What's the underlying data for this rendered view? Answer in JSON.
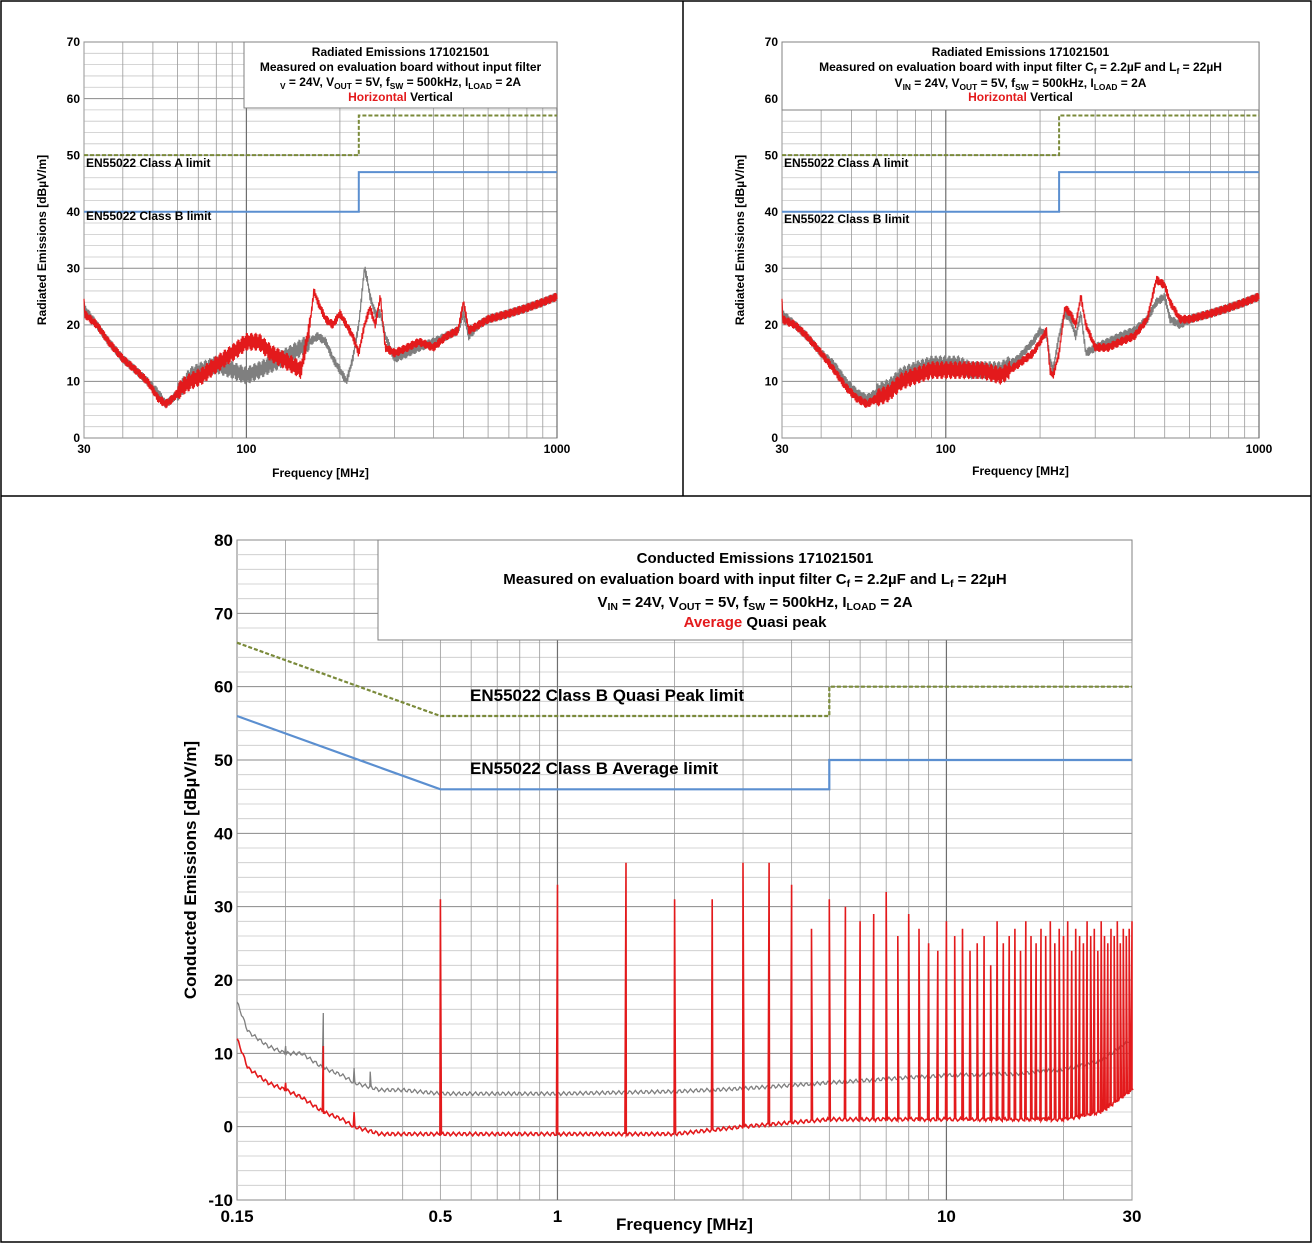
{
  "chart_data": [
    {
      "id": "radiated-no-filter",
      "type": "line",
      "title": "Radiated Emissions 171021501",
      "subtitle": "Measured on evaluation board without input filter",
      "conditions": [
        {
          "t": "V",
          "s": "IN"
        },
        {
          "t": " = 24V, V"
        },
        {
          "t": "OUT",
          "s": 1
        },
        {
          "t": " = 5V, f"
        },
        {
          "t": "SW",
          "s": 1
        },
        {
          "t": " = 500kHz, I"
        },
        {
          "t": "LOAD",
          "s": 1
        },
        {
          "t": " = 2A"
        }
      ],
      "conditions_text": "VIN = 24V, VOUT = 5V, fSW = 500kHz, ILOAD = 2A",
      "legend": [
        {
          "name": "Horizontal",
          "color": "#e31a1c"
        },
        {
          "name": "Vertical",
          "color": "#000000"
        }
      ],
      "xlabel": "Frequency [MHz]",
      "ylabel": "Radiated Emissions [dBµV/m]",
      "x_scale": "log",
      "xlim": [
        30,
        1000
      ],
      "ylim": [
        0,
        70
      ],
      "x_ticks": [
        30,
        100,
        1000
      ],
      "y_ticks": [
        0,
        10,
        20,
        30,
        40,
        50,
        60,
        70
      ],
      "limits": [
        {
          "name": "EN55022 Class A limit",
          "style": "dashed",
          "color": "#7a8a3a",
          "x": [
            30,
            230,
            230,
            1000
          ],
          "y": [
            50,
            50,
            57,
            57
          ]
        },
        {
          "name": "EN55022 Class B limit",
          "style": "solid",
          "color": "#5b8fd0",
          "x": [
            30,
            230,
            230,
            1000
          ],
          "y": [
            40,
            40,
            47,
            47
          ]
        }
      ],
      "series": [
        {
          "name": "Horizontal",
          "color": "#e31a1c",
          "x": [
            30,
            33,
            36,
            40,
            44,
            48,
            52,
            55,
            58,
            62,
            66,
            72,
            80,
            90,
            100,
            110,
            120,
            130,
            140,
            150,
            160,
            165,
            170,
            180,
            190,
            200,
            210,
            220,
            230,
            240,
            250,
            260,
            270,
            280,
            300,
            330,
            360,
            400,
            440,
            480,
            500,
            520,
            560,
            600,
            700,
            800,
            900,
            1000
          ],
          "y": [
            22,
            20,
            17,
            14,
            12,
            10,
            7,
            6,
            7,
            9,
            10,
            11,
            13,
            15,
            17,
            17,
            15,
            14,
            13,
            12,
            20,
            26,
            24,
            21,
            20,
            22,
            20,
            18,
            15,
            20,
            23,
            20,
            25,
            16,
            15,
            16,
            17,
            16,
            18,
            19,
            24,
            19,
            20,
            21,
            22,
            23,
            24,
            25
          ]
        },
        {
          "name": "Vertical",
          "color": "#7f7f7f",
          "x": [
            30,
            33,
            36,
            40,
            44,
            48,
            52,
            55,
            58,
            62,
            66,
            72,
            80,
            90,
            100,
            110,
            120,
            130,
            140,
            150,
            160,
            170,
            180,
            190,
            200,
            210,
            215,
            220,
            230,
            240,
            245,
            250,
            260,
            270,
            280,
            300,
            330,
            360,
            400,
            440,
            480,
            500,
            520,
            560,
            600,
            700,
            800,
            900,
            1000
          ],
          "y": [
            23,
            20,
            17,
            14,
            12,
            10,
            8,
            6,
            7,
            9,
            11,
            12,
            13,
            12,
            11,
            12,
            13,
            14,
            15,
            16,
            17,
            18,
            17,
            14,
            12,
            10,
            12,
            14,
            20,
            30,
            28,
            25,
            22,
            22,
            18,
            14,
            15,
            16,
            17,
            18,
            19,
            22,
            18,
            20,
            21,
            22,
            23,
            24,
            25
          ]
        }
      ]
    },
    {
      "id": "radiated-with-filter",
      "type": "line",
      "title": "Radiated Emissions 171021501",
      "subtitle_parts": [
        {
          "t": "Measured on evaluation board with input filter C"
        },
        {
          "t": "f",
          "s": 1
        },
        {
          "t": " = 2.2µF and L"
        },
        {
          "t": "f",
          "s": 1
        },
        {
          "t": " = 22µH"
        }
      ],
      "subtitle": "Measured on evaluation board with input filter Cf = 2.2µF and Lf = 22µH",
      "conditions": [
        {
          "t": "V"
        },
        {
          "t": "IN",
          "s": 1
        },
        {
          "t": " = 24V, V"
        },
        {
          "t": "OUT",
          "s": 1
        },
        {
          "t": " = 5V, f"
        },
        {
          "t": "SW",
          "s": 1
        },
        {
          "t": " = 500kHz, I"
        },
        {
          "t": "LOAD",
          "s": 1
        },
        {
          "t": " = 2A"
        }
      ],
      "conditions_text": "VIN = 24V, VOUT = 5V, fSW = 500kHz, ILOAD = 2A",
      "legend": [
        {
          "name": "Horizontal",
          "color": "#e31a1c"
        },
        {
          "name": "Vertical",
          "color": "#000000"
        }
      ],
      "xlabel": "Frequency [MHz]",
      "ylabel": "Radiated Emissions [dBµV/m]",
      "x_scale": "log",
      "xlim": [
        30,
        1000
      ],
      "ylim": [
        0,
        70
      ],
      "x_ticks": [
        30,
        100,
        1000
      ],
      "y_ticks": [
        0,
        10,
        20,
        30,
        40,
        50,
        60,
        70
      ],
      "limits": [
        {
          "name": "EN55022 Class A limit",
          "style": "dashed",
          "color": "#7a8a3a",
          "x": [
            30,
            230,
            230,
            1000
          ],
          "y": [
            50,
            50,
            57,
            57
          ]
        },
        {
          "name": "EN55022 Class B limit",
          "style": "solid",
          "color": "#5b8fd0",
          "x": [
            30,
            230,
            230,
            1000
          ],
          "y": [
            40,
            40,
            47,
            47
          ]
        }
      ],
      "series": [
        {
          "name": "Horizontal",
          "color": "#e31a1c",
          "x": [
            30,
            33,
            36,
            40,
            44,
            48,
            52,
            56,
            60,
            66,
            72,
            80,
            90,
            100,
            110,
            120,
            130,
            150,
            170,
            190,
            200,
            210,
            215,
            220,
            230,
            240,
            250,
            260,
            270,
            280,
            300,
            330,
            360,
            400,
            440,
            470,
            500,
            520,
            560,
            600,
            700,
            800,
            900,
            1000
          ],
          "y": [
            21,
            20,
            18,
            15,
            12,
            9,
            7,
            6,
            7,
            8,
            10,
            11,
            12,
            12,
            12,
            12,
            12,
            11,
            13,
            15,
            17,
            19,
            12,
            11,
            15,
            23,
            22,
            20,
            25,
            20,
            16,
            16,
            17,
            18,
            21,
            28,
            27,
            24,
            21,
            21,
            22,
            23,
            24,
            25
          ]
        },
        {
          "name": "Vertical",
          "color": "#7f7f7f",
          "x": [
            30,
            33,
            36,
            40,
            44,
            48,
            52,
            56,
            60,
            66,
            72,
            80,
            90,
            100,
            110,
            120,
            130,
            150,
            170,
            190,
            200,
            210,
            215,
            220,
            230,
            240,
            250,
            260,
            270,
            280,
            300,
            330,
            360,
            400,
            440,
            470,
            500,
            520,
            560,
            600,
            700,
            800,
            900,
            1000
          ],
          "y": [
            22,
            20,
            18,
            15,
            13,
            10,
            8,
            7,
            8,
            9,
            11,
            12,
            13,
            13,
            13,
            12,
            12,
            12,
            14,
            17,
            19,
            18,
            14,
            12,
            18,
            22,
            21,
            18,
            22,
            15,
            16,
            17,
            18,
            19,
            21,
            24,
            25,
            21,
            20,
            21,
            22,
            23,
            24,
            25
          ]
        }
      ]
    },
    {
      "id": "conducted-with-filter",
      "type": "line",
      "title": "Conducted Emissions 171021501",
      "subtitle_parts": [
        {
          "t": "Measured on evaluation board with input filter   C"
        },
        {
          "t": "f",
          "s": 1
        },
        {
          "t": " = 2.2µF and L"
        },
        {
          "t": "f",
          "s": 1
        },
        {
          "t": " = 22µH"
        }
      ],
      "subtitle": "Measured on evaluation board with input filter Cf = 2.2µF and Lf = 22µH",
      "conditions": [
        {
          "t": "V"
        },
        {
          "t": "IN",
          "s": 1
        },
        {
          "t": " = 24V, V"
        },
        {
          "t": "OUT",
          "s": 1
        },
        {
          "t": " = 5V, f"
        },
        {
          "t": "SW",
          "s": 1
        },
        {
          "t": " = 500kHz, I"
        },
        {
          "t": "LOAD",
          "s": 1
        },
        {
          "t": " = 2A"
        }
      ],
      "conditions_text": "VIN = 24V, VOUT = 5V, fSW = 500kHz, ILOAD = 2A",
      "legend": [
        {
          "name": "Average",
          "color": "#e31a1c"
        },
        {
          "name": "Quasi peak",
          "color": "#000000"
        }
      ],
      "xlabel": "Frequency [MHz]",
      "ylabel": "Conducted Emissions [dBµV/m]",
      "x_scale": "log",
      "xlim": [
        0.15,
        30
      ],
      "ylim": [
        -10,
        80
      ],
      "x_ticks": [
        0.15,
        0.5,
        1,
        10,
        30
      ],
      "y_ticks": [
        -10,
        0,
        10,
        20,
        30,
        40,
        50,
        60,
        70,
        80
      ],
      "limits": [
        {
          "name": "EN55022 Class B Quasi Peak limit",
          "style": "dashed",
          "color": "#7a8a3a",
          "x": [
            0.15,
            0.5,
            5,
            5,
            30
          ],
          "y": [
            66,
            56,
            56,
            60,
            60
          ]
        },
        {
          "name": "EN55022 Class B Average limit",
          "style": "solid",
          "color": "#5b8fd0",
          "x": [
            0.15,
            0.5,
            5,
            5,
            30
          ],
          "y": [
            56,
            46,
            46,
            50,
            50
          ]
        }
      ],
      "series": [
        {
          "name": "Average",
          "color": "#e31a1c",
          "base": {
            "x": [
              0.15,
              0.16,
              0.18,
              0.2,
              0.22,
              0.25,
              0.28,
              0.3,
              0.35,
              0.4,
              0.5,
              0.7,
              1,
              2,
              3,
              5,
              7,
              10,
              15,
              20,
              25,
              30
            ],
            "y": [
              12,
              8,
              6,
              5,
              4,
              2,
              1,
              0,
              -1,
              -1,
              -1,
              -1,
              -1,
              -1,
              0,
              1,
              1,
              1,
              1,
              1,
              2,
              5
            ]
          },
          "spikes_x": [
            0.2,
            0.25,
            0.3,
            0.5,
            1,
            1.5,
            2,
            2.5,
            3,
            3.5,
            4,
            4.5,
            5,
            5.5,
            6,
            6.5,
            7,
            7.5,
            8,
            8.5,
            9,
            9.5,
            10,
            10.5,
            11,
            11.5,
            12,
            12.5,
            13,
            13.5,
            14,
            14.5,
            15,
            15.5,
            16,
            16.5,
            17,
            17.5,
            18,
            18.5,
            19,
            19.5,
            20,
            20.5,
            21,
            21.5,
            22,
            22.5,
            23,
            23.5,
            24,
            24.5,
            25,
            25.5,
            26,
            26.5,
            27,
            27.5,
            28,
            28.5,
            29,
            29.5,
            30
          ],
          "spikes_y": [
            6,
            11,
            2,
            31,
            33,
            36,
            31,
            31,
            36,
            36,
            33,
            27,
            31,
            30,
            28,
            29,
            32,
            26,
            29,
            27,
            25,
            24,
            28,
            26,
            27,
            24,
            25,
            26,
            22,
            28,
            25,
            26,
            27,
            24,
            28,
            26,
            25,
            27,
            26,
            28,
            25,
            27,
            26,
            28,
            24,
            27,
            26,
            25,
            28,
            26,
            27,
            24,
            28,
            26,
            25,
            27,
            26,
            28,
            25,
            27,
            26,
            27,
            28
          ]
        },
        {
          "name": "Quasi peak",
          "color": "#7f7f7f",
          "base": {
            "x": [
              0.15,
              0.16,
              0.18,
              0.2,
              0.22,
              0.25,
              0.28,
              0.3,
              0.35,
              0.4,
              0.5,
              0.7,
              1,
              2,
              3,
              5,
              7,
              10,
              15,
              20,
              25,
              30
            ],
            "y": [
              17,
              13,
              11,
              10,
              10,
              8,
              7,
              6,
              5,
              5,
              4.5,
              4.5,
              4.5,
              4.8,
              5.2,
              6,
              6.5,
              7,
              7.2,
              7.8,
              9,
              12
            ]
          },
          "spikes_x": [
            0.2,
            0.25,
            0.3,
            0.33
          ],
          "spikes_y": [
            11,
            15.5,
            8,
            7.5
          ]
        }
      ]
    }
  ]
}
